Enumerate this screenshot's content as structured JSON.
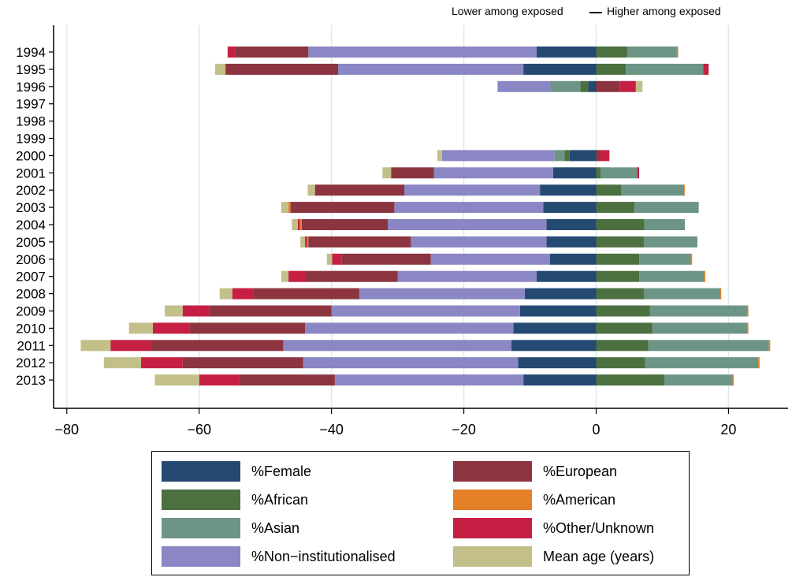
{
  "header": {
    "lower_label": "Lower among exposed",
    "higher_label": "Higher among exposed"
  },
  "chart_data": {
    "type": "bar",
    "orientation": "horizontal",
    "stacked": "diverging",
    "categories": [
      "1994",
      "1995",
      "1996",
      "1997",
      "1998",
      "1999",
      "2000",
      "2001",
      "2002",
      "2003",
      "2004",
      "2005",
      "2006",
      "2007",
      "2008",
      "2009",
      "2010",
      "2011",
      "2012",
      "2013"
    ],
    "xlim": [
      -82,
      29
    ],
    "xticks": [
      -80,
      -60,
      -40,
      -20,
      0,
      20
    ],
    "xtick_labels": [
      "−80",
      "−60",
      "−40",
      "−20",
      "0",
      "20"
    ],
    "grid": "vertical",
    "legend_position": "bottom",
    "series": [
      {
        "name": "%Female",
        "color": "#244a72",
        "values": [
          -9,
          -11,
          -1.2,
          null,
          null,
          null,
          -4,
          -6.5,
          -8.5,
          -8,
          -7.5,
          -7.5,
          -7,
          -9,
          -10.8,
          -11.5,
          -12.5,
          -12.8,
          -11.8,
          -11
        ]
      },
      {
        "name": "%African",
        "color": "#4d7040",
        "values": [
          4.7,
          4.5,
          -1.2,
          null,
          null,
          null,
          -0.8,
          0.7,
          3.8,
          5.8,
          7.3,
          7.2,
          6.5,
          6.5,
          7.2,
          8.1,
          8.5,
          7.9,
          7.4,
          10.3
        ]
      },
      {
        "name": "%Asian",
        "color": "#6d9585",
        "values": [
          7.5,
          11.7,
          -4.5,
          null,
          null,
          null,
          -1.5,
          5.5,
          9.5,
          9.7,
          6.1,
          8.1,
          7.8,
          9.8,
          11.5,
          14.7,
          14.4,
          18.2,
          17.1,
          10.3
        ]
      },
      {
        "name": "%Non−institutionalised",
        "color": "#8a87c4",
        "values": [
          -34.5,
          -28,
          -8,
          null,
          null,
          null,
          -17,
          -18,
          -20.5,
          -22.5,
          -24,
          -20.5,
          -18,
          -21,
          -25,
          -28.5,
          -31.5,
          -34.5,
          -32.5,
          -28.5
        ]
      },
      {
        "name": "%European",
        "color": "#8c3540",
        "values": [
          -11,
          -17,
          3.6,
          null,
          null,
          null,
          0.6,
          -6.5,
          -13.5,
          -15.7,
          -13,
          -15.5,
          -13.5,
          -14,
          -16,
          -18.5,
          -17.5,
          -20,
          -18.2,
          -14.5
        ]
      },
      {
        "name": "%American",
        "color": "#e38028",
        "values": [
          0.2,
          -0.1,
          null,
          null,
          null,
          null,
          null,
          null,
          0.1,
          -0.3,
          -0.3,
          -0.2,
          0.2,
          0.2,
          0.2,
          0.2,
          0.1,
          0.2,
          0.2,
          0.2
        ]
      },
      {
        "name": "%Other/Unknown",
        "color": "#c52043",
        "values": [
          -1.2,
          0.8,
          2.4,
          null,
          null,
          null,
          1.4,
          0.3,
          null,
          null,
          -0.3,
          -0.3,
          -1.4,
          -2.5,
          -3.2,
          -4,
          -5.5,
          -6.1,
          -6.3,
          -6
        ]
      },
      {
        "name": "Mean age (years)",
        "color": "#c3bf89",
        "values": [
          null,
          -1.5,
          1,
          null,
          null,
          null,
          -0.7,
          -1.3,
          -1.1,
          -1.1,
          -0.9,
          -0.7,
          -0.8,
          -1.1,
          -1.9,
          -2.7,
          -3.6,
          -4.5,
          -5.6,
          -6.7
        ]
      }
    ]
  }
}
